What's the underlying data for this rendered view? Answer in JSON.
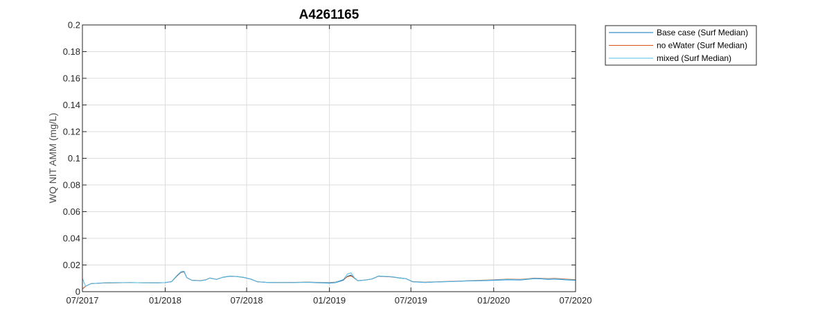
{
  "chart_data": {
    "type": "line",
    "title": "A4261165",
    "xlabel": "",
    "ylabel": "WQ NIT AMM (mg/L)",
    "xlim": [
      "2017-07-01",
      "2020-07-01"
    ],
    "ylim": [
      0,
      0.2
    ],
    "x_ticks": [
      "2017-07-01",
      "2018-01-01",
      "2018-07-01",
      "2019-01-01",
      "2019-07-01",
      "2020-01-01",
      "2020-07-01"
    ],
    "x_tick_labels": [
      "07/2017",
      "01/2018",
      "07/2018",
      "01/2019",
      "07/2019",
      "01/2020",
      "07/2020"
    ],
    "y_ticks": [
      0,
      0.02,
      0.04,
      0.06,
      0.08,
      0.1,
      0.12,
      0.14,
      0.16,
      0.18,
      0.2
    ],
    "y_tick_labels": [
      "0",
      "0.02",
      "0.04",
      "0.06",
      "0.08",
      "0.1",
      "0.12",
      "0.14",
      "0.16",
      "0.18",
      "0.2"
    ],
    "grid": true,
    "legend_position": "outside-top-right",
    "series": [
      {
        "name": "Base case (Surf Median)",
        "color": "#0072bd",
        "x": [
          "2017-07-01",
          "2017-07-08",
          "2017-07-20",
          "2017-08-15",
          "2017-09-15",
          "2017-10-15",
          "2017-11-15",
          "2017-12-15",
          "2018-01-01",
          "2018-01-15",
          "2018-01-28",
          "2018-02-05",
          "2018-02-12",
          "2018-02-18",
          "2018-03-01",
          "2018-03-20",
          "2018-04-01",
          "2018-04-10",
          "2018-04-25",
          "2018-05-10",
          "2018-05-25",
          "2018-06-10",
          "2018-06-25",
          "2018-07-10",
          "2018-07-25",
          "2018-08-15",
          "2018-09-15",
          "2018-10-15",
          "2018-11-15",
          "2018-12-15",
          "2019-01-01",
          "2019-01-15",
          "2019-02-01",
          "2019-02-10",
          "2019-02-18",
          "2019-02-25",
          "2019-03-05",
          "2019-03-20",
          "2019-04-05",
          "2019-04-20",
          "2019-05-05",
          "2019-05-20",
          "2019-06-05",
          "2019-06-20",
          "2019-07-05",
          "2019-08-01",
          "2019-09-01",
          "2019-10-01",
          "2019-11-01",
          "2019-12-01",
          "2020-01-01",
          "2020-02-01",
          "2020-03-01",
          "2020-04-01",
          "2020-04-15",
          "2020-05-01",
          "2020-05-15",
          "2020-06-01",
          "2020-06-15",
          "2020-07-01"
        ],
        "y": [
          0.002,
          0.004,
          0.006,
          0.0065,
          0.0067,
          0.0068,
          0.0067,
          0.0066,
          0.0068,
          0.0075,
          0.012,
          0.0145,
          0.0148,
          0.0105,
          0.0085,
          0.0082,
          0.0088,
          0.0102,
          0.0092,
          0.0108,
          0.0116,
          0.0113,
          0.0106,
          0.0094,
          0.0074,
          0.0069,
          0.0068,
          0.0069,
          0.007,
          0.0066,
          0.0064,
          0.0068,
          0.0086,
          0.0116,
          0.0124,
          0.0102,
          0.0082,
          0.0086,
          0.0094,
          0.0116,
          0.0113,
          0.011,
          0.0103,
          0.0097,
          0.0074,
          0.0069,
          0.0073,
          0.0076,
          0.008,
          0.0082,
          0.0085,
          0.009,
          0.0088,
          0.0098,
          0.0096,
          0.0092,
          0.0094,
          0.0091,
          0.0088,
          0.0085
        ]
      },
      {
        "name": "no eWater (Surf Median)",
        "color": "#d95319",
        "x": [
          "2017-07-01",
          "2017-07-08",
          "2017-07-20",
          "2017-08-15",
          "2017-09-15",
          "2017-10-15",
          "2017-11-15",
          "2017-12-15",
          "2018-01-01",
          "2018-01-15",
          "2018-01-28",
          "2018-02-05",
          "2018-02-12",
          "2018-02-18",
          "2018-03-01",
          "2018-03-20",
          "2018-04-01",
          "2018-04-10",
          "2018-04-25",
          "2018-05-10",
          "2018-05-25",
          "2018-06-10",
          "2018-06-25",
          "2018-07-10",
          "2018-07-25",
          "2018-08-15",
          "2018-09-15",
          "2018-10-15",
          "2018-11-15",
          "2018-12-15",
          "2019-01-01",
          "2019-01-15",
          "2019-02-01",
          "2019-02-10",
          "2019-02-18",
          "2019-02-25",
          "2019-03-05",
          "2019-03-20",
          "2019-04-05",
          "2019-04-20",
          "2019-05-05",
          "2019-05-20",
          "2019-06-05",
          "2019-06-20",
          "2019-07-05",
          "2019-08-01",
          "2019-09-01",
          "2019-10-01",
          "2019-11-01",
          "2019-12-01",
          "2020-01-01",
          "2020-02-01",
          "2020-03-01",
          "2020-04-01",
          "2020-04-15",
          "2020-05-01",
          "2020-05-15",
          "2020-06-01",
          "2020-06-15",
          "2020-07-01"
        ],
        "y": [
          0.002,
          0.004,
          0.006,
          0.0065,
          0.0067,
          0.0068,
          0.0067,
          0.0066,
          0.0068,
          0.0076,
          0.0122,
          0.0147,
          0.015,
          0.0106,
          0.0086,
          0.0083,
          0.0089,
          0.0103,
          0.0093,
          0.0109,
          0.0117,
          0.0114,
          0.0107,
          0.0095,
          0.0075,
          0.007,
          0.0069,
          0.007,
          0.0072,
          0.0069,
          0.0068,
          0.0072,
          0.009,
          0.0112,
          0.0118,
          0.0104,
          0.0083,
          0.0087,
          0.0095,
          0.0117,
          0.0114,
          0.0111,
          0.0104,
          0.0098,
          0.0076,
          0.0071,
          0.0075,
          0.0078,
          0.0082,
          0.0085,
          0.0089,
          0.0094,
          0.0092,
          0.0102,
          0.01,
          0.0097,
          0.0099,
          0.0096,
          0.0093,
          0.009
        ]
      },
      {
        "name": "mixed (Surf Median)",
        "color": "#4dbeee",
        "x": [
          "2017-07-01",
          "2017-07-08",
          "2017-07-20",
          "2017-08-15",
          "2017-09-15",
          "2017-10-15",
          "2017-11-15",
          "2017-12-15",
          "2018-01-01",
          "2018-01-15",
          "2018-01-28",
          "2018-02-05",
          "2018-02-12",
          "2018-02-18",
          "2018-03-01",
          "2018-03-20",
          "2018-04-01",
          "2018-04-10",
          "2018-04-25",
          "2018-05-10",
          "2018-05-25",
          "2018-06-10",
          "2018-06-25",
          "2018-07-10",
          "2018-07-25",
          "2018-08-15",
          "2018-09-15",
          "2018-10-15",
          "2018-11-15",
          "2018-12-15",
          "2019-01-01",
          "2019-01-15",
          "2019-02-01",
          "2019-02-10",
          "2019-02-18",
          "2019-02-25",
          "2019-03-05",
          "2019-03-20",
          "2019-04-05",
          "2019-04-20",
          "2019-05-05",
          "2019-05-20",
          "2019-06-05",
          "2019-06-20",
          "2019-07-05",
          "2019-08-01",
          "2019-09-01",
          "2019-10-01",
          "2019-11-01",
          "2019-12-01",
          "2020-01-01",
          "2020-02-01",
          "2020-03-01",
          "2020-04-01",
          "2020-04-15",
          "2020-05-01",
          "2020-05-15",
          "2020-06-01",
          "2020-06-15",
          "2020-07-01"
        ],
        "y": [
          0.01,
          0.004,
          0.006,
          0.0066,
          0.0068,
          0.0068,
          0.0067,
          0.0066,
          0.0068,
          0.0076,
          0.0125,
          0.015,
          0.0153,
          0.0106,
          0.0085,
          0.0082,
          0.0088,
          0.0102,
          0.0092,
          0.0109,
          0.0117,
          0.0114,
          0.0107,
          0.0095,
          0.0075,
          0.007,
          0.0068,
          0.0069,
          0.0071,
          0.0068,
          0.0066,
          0.007,
          0.0092,
          0.0132,
          0.0142,
          0.0106,
          0.0083,
          0.0087,
          0.0095,
          0.0118,
          0.0115,
          0.0112,
          0.0104,
          0.0098,
          0.0075,
          0.007,
          0.0074,
          0.0077,
          0.0081,
          0.0083,
          0.0087,
          0.0092,
          0.009,
          0.01,
          0.0098,
          0.0094,
          0.0096,
          0.0093,
          0.009,
          0.0087
        ]
      }
    ]
  }
}
